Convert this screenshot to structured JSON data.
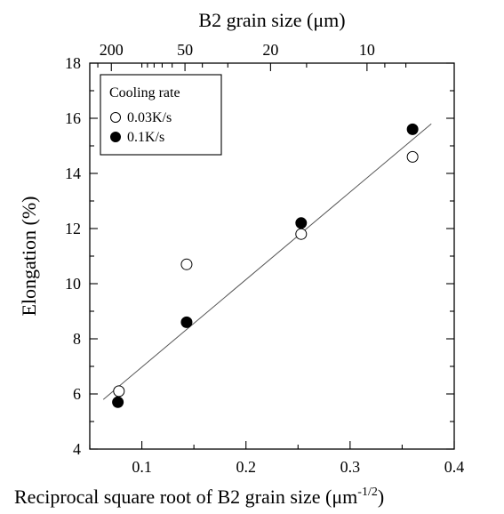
{
  "chart_data": {
    "type": "scatter",
    "xlabel": "Reciprocal square root of B2 grain size",
    "xlabel_unit_prefix": "μm",
    "xlabel_unit_exponent": "-1/2",
    "ylabel": "Elongation (%)",
    "top_xlabel": "B2 grain size (μm)",
    "xlim": [
      0.05,
      0.4
    ],
    "ylim": [
      4,
      18
    ],
    "x_ticks": [
      0.1,
      0.2,
      0.3,
      0.4
    ],
    "x_tick_labels": [
      "0.1",
      "0.2",
      "0.3",
      "0.4"
    ],
    "x_minor_step": 0.05,
    "y_ticks": [
      4,
      6,
      8,
      10,
      12,
      14,
      16,
      18
    ],
    "y_tick_labels": [
      "4",
      "6",
      "8",
      "10",
      "12",
      "14",
      "16",
      "18"
    ],
    "y_minor_step": 1,
    "top_axis": {
      "scale": "reciprocal-square-root",
      "ticks": [
        200,
        50,
        20,
        10
      ],
      "tick_labels": [
        "200",
        "50",
        "20",
        "10"
      ]
    },
    "grid": false,
    "legend": {
      "title": "Cooling rate",
      "position": "top-left",
      "entries": [
        "0.03K/s",
        "0.1K/s"
      ]
    },
    "series": [
      {
        "name": "0.03K/s",
        "marker": "open-circle",
        "color": "#000000",
        "points": [
          {
            "x": 0.078,
            "y": 6.1
          },
          {
            "x": 0.143,
            "y": 10.7
          },
          {
            "x": 0.253,
            "y": 11.8
          },
          {
            "x": 0.36,
            "y": 14.6
          }
        ]
      },
      {
        "name": "0.1K/s",
        "marker": "filled-circle",
        "color": "#000000",
        "points": [
          {
            "x": 0.077,
            "y": 5.7
          },
          {
            "x": 0.143,
            "y": 8.6
          },
          {
            "x": 0.253,
            "y": 12.2
          },
          {
            "x": 0.36,
            "y": 15.6
          }
        ]
      }
    ],
    "fit_line": {
      "x": [
        0.063,
        0.378
      ],
      "y": [
        5.8,
        15.8
      ],
      "color": "#555555"
    }
  }
}
